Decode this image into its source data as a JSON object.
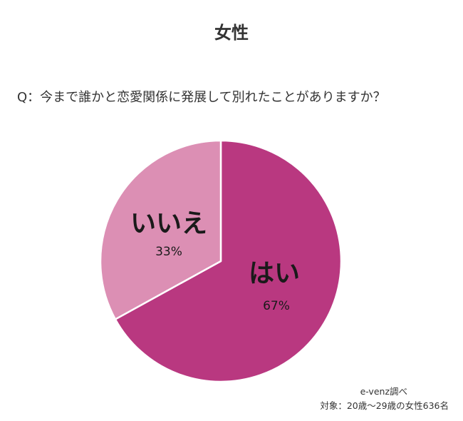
{
  "title": "女性",
  "question": "Q：今まで誰かと恋愛関係に発展して別れたことがありますか？",
  "source": "e-venz調べ",
  "target": "対象：20歳〜29歳の女性636名",
  "colors": {
    "yes": "#b93880",
    "no": "#dc8fb4",
    "separator": "#ffffff"
  },
  "chart_data": {
    "type": "pie",
    "title": "女性",
    "slices": [
      {
        "label": "はい",
        "value": 67,
        "display": "67%"
      },
      {
        "label": "いいえ",
        "value": 33,
        "display": "33%"
      }
    ]
  }
}
